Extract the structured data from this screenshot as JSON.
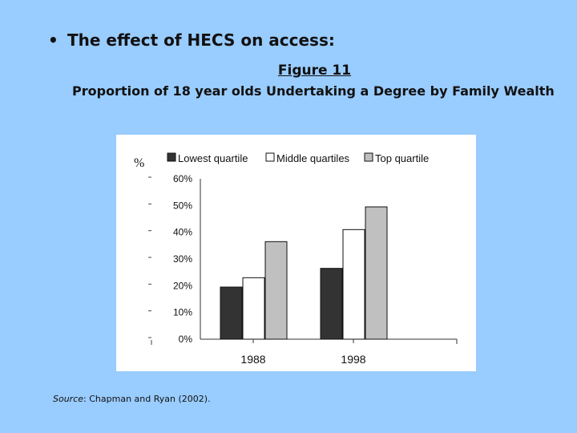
{
  "slide": {
    "bullet_symbol": "•",
    "bullet_text": "The effect of HECS on access:",
    "figure_label": "Figure 11",
    "subtitle": "Proportion of 18 year olds Undertaking a Degree by Family Wealth",
    "source_label": "Source",
    "source_text": ": Chapman and Ryan (2002)."
  },
  "colors": {
    "background": "#99ccff",
    "lowest": "#333333",
    "middle": "#ffffff",
    "top": "#c0c0c0"
  },
  "chart_data": {
    "type": "bar",
    "title": "",
    "ylabel": "%",
    "xlabel": "",
    "categories": [
      "1988",
      "1998"
    ],
    "series": [
      {
        "name": "Lowest quartile",
        "values": [
          19.5,
          26.5
        ]
      },
      {
        "name": "Middle quartiles",
        "values": [
          23,
          41
        ]
      },
      {
        "name": "Top quartile",
        "values": [
          36.5,
          49.5
        ]
      }
    ],
    "ylim": [
      0,
      60
    ],
    "yticks": [
      "0%",
      "10%",
      "20%",
      "30%",
      "40%",
      "50%",
      "60%"
    ],
    "legend_position": "top",
    "grid": false
  }
}
